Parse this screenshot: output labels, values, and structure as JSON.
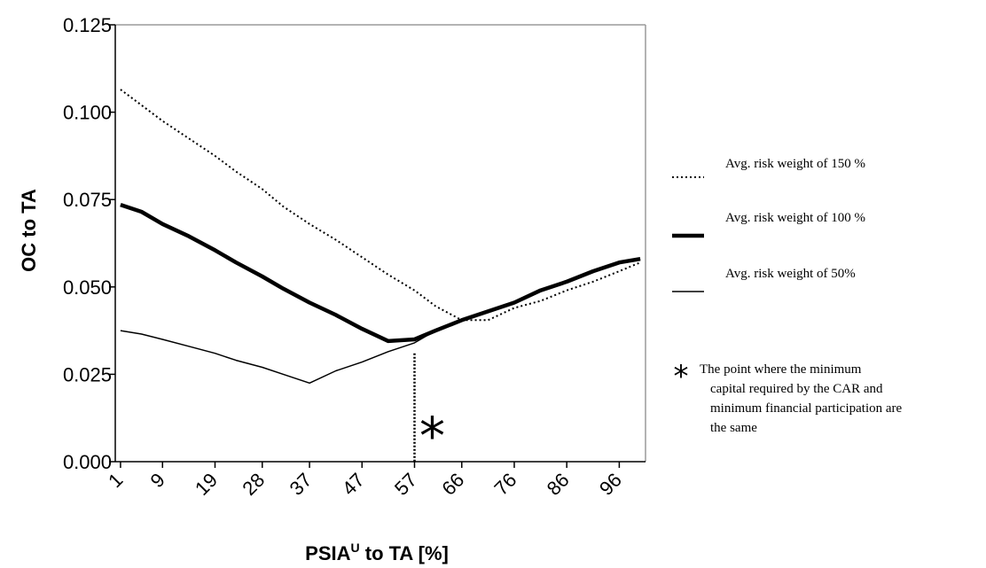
{
  "chart_data": {
    "type": "line",
    "xlabel": "PSIA",
    "xlabel_sup": "U",
    "xlabel_suffix": " to TA [%]",
    "ylabel": "OC to TA",
    "ylim": [
      0,
      0.125
    ],
    "yticks": [
      "0.000",
      "0.025",
      "0.050",
      "0.075",
      "0.100",
      "0.125"
    ],
    "x_tick_labels": [
      "1",
      "9",
      "19",
      "28",
      "37",
      "47",
      "57",
      "66",
      "76",
      "86",
      "96"
    ],
    "grid": false,
    "legend_position": "right",
    "x": [
      1,
      5,
      9,
      14,
      19,
      23,
      28,
      32,
      37,
      42,
      47,
      52,
      57,
      61,
      66,
      71,
      76,
      81,
      86,
      91,
      96,
      100
    ],
    "series": [
      {
        "name": "Avg. risk weight of 150 %",
        "style": "dotted",
        "color": "#000000",
        "values": [
          0.1065,
          0.102,
          0.0975,
          0.0925,
          0.0875,
          0.083,
          0.078,
          0.073,
          0.068,
          0.0635,
          0.0585,
          0.0535,
          0.049,
          0.0445,
          0.0405,
          0.0405,
          0.044,
          0.046,
          0.049,
          0.0515,
          0.0545,
          0.057
        ]
      },
      {
        "name": "Avg. risk weight of 100 %",
        "style": "thick",
        "color": "#000000",
        "values": [
          0.0735,
          0.0715,
          0.068,
          0.0645,
          0.0605,
          0.057,
          0.053,
          0.0495,
          0.0455,
          0.042,
          0.038,
          0.0345,
          0.035,
          0.0375,
          0.0405,
          0.043,
          0.0455,
          0.049,
          0.0515,
          0.0545,
          0.057,
          0.058
        ]
      },
      {
        "name": "Avg. risk weight of 50%",
        "style": "thin",
        "color": "#000000",
        "values": [
          0.0375,
          0.0365,
          0.035,
          0.033,
          0.031,
          0.029,
          0.027,
          0.025,
          0.0225,
          0.026,
          0.0285,
          0.0315,
          0.034,
          0.0375,
          0.0405,
          0.043,
          0.0455,
          0.049,
          0.0515,
          0.0545,
          0.057,
          0.058
        ]
      }
    ],
    "marker": {
      "symbol": "*",
      "x": 57,
      "y": 0.031,
      "label": "The point where the minimum capital required by the CAR and minimum financial participation are the same",
      "label_lines": [
        "The point where the minimum",
        "capital required by the CAR and",
        "minimum financial participation are",
        "the same"
      ]
    }
  }
}
